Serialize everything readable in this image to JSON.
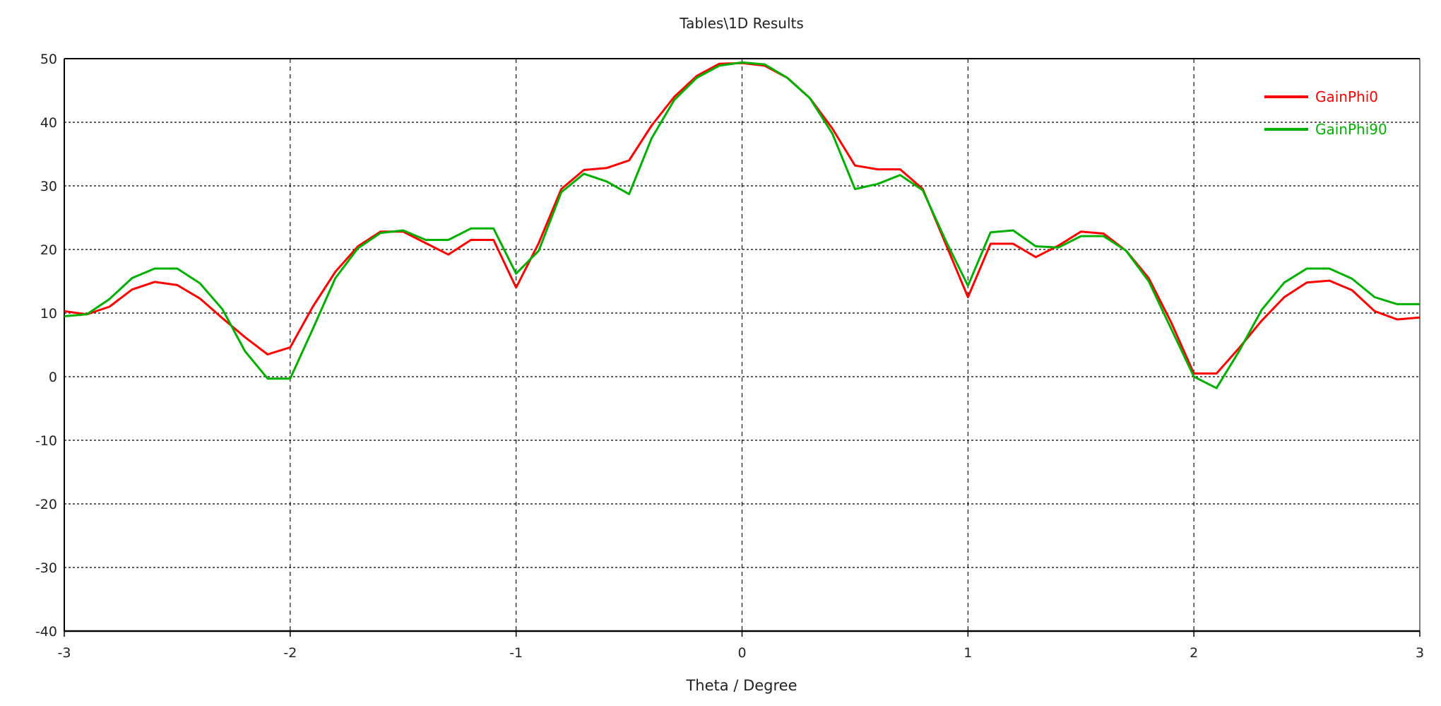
{
  "chart_data": {
    "type": "line",
    "title": "Tables\\1D Results",
    "xlabel": "Theta / Degree",
    "ylabel": "",
    "xlim": [
      -3,
      3
    ],
    "ylim": [
      -40,
      50
    ],
    "xticks": [
      -3,
      -2,
      -1,
      0,
      1,
      2,
      3
    ],
    "yticks": [
      -40,
      -30,
      -20,
      -10,
      0,
      10,
      20,
      30,
      40,
      50
    ],
    "grid": true,
    "legend_position": "top-right",
    "x": [
      -3,
      -2.9,
      -2.8,
      -2.7,
      -2.6,
      -2.5,
      -2.4,
      -2.3,
      -2.2,
      -2.1,
      -2,
      -1.9,
      -1.8,
      -1.7,
      -1.6,
      -1.5,
      -1.4,
      -1.3,
      -1.2,
      -1.1,
      -1,
      -0.9,
      -0.8,
      -0.7,
      -0.6,
      -0.5,
      -0.4,
      -0.3,
      -0.2,
      -0.1,
      0,
      0.1,
      0.2,
      0.3,
      0.4,
      0.5,
      0.6,
      0.7,
      0.8,
      0.9,
      1,
      1.1,
      1.2,
      1.3,
      1.4,
      1.5,
      1.6,
      1.7,
      1.8,
      1.9,
      2,
      2.1,
      2.2,
      2.3,
      2.4,
      2.5,
      2.6,
      2.7,
      2.8,
      2.9,
      3
    ],
    "series": [
      {
        "name": "GainPhi0",
        "color": "#ff0000",
        "values": [
          10.3,
          9.8,
          11,
          13.7,
          14.9,
          14.4,
          12.3,
          9.2,
          6.2,
          3.5,
          4.6,
          11,
          16.5,
          20.5,
          22.8,
          22.8,
          21,
          19.2,
          21.5,
          21.5,
          14,
          21,
          29.5,
          32.5,
          32.8,
          34,
          39.5,
          44,
          47.3,
          49.2,
          49.3,
          48.9,
          47,
          43.8,
          39,
          33.2,
          32.6,
          32.6,
          29.5,
          21,
          12.5,
          20.9,
          20.9,
          18.8,
          20.6,
          22.8,
          22.5,
          19.8,
          15.5,
          8.5,
          0.5,
          0.5,
          4.5,
          8.8,
          12.5,
          14.8,
          15.1,
          13.6,
          10.3,
          9,
          9.3
        ]
      },
      {
        "name": "GainPhi90",
        "color": "#00b000",
        "values": [
          9.5,
          9.8,
          12.2,
          15.5,
          17,
          17,
          14.7,
          10.6,
          4,
          -0.3,
          -0.3,
          7.5,
          15.5,
          20.2,
          22.6,
          23,
          21.5,
          21.5,
          23.3,
          23.3,
          16.2,
          19.8,
          29,
          31.9,
          30.7,
          28.7,
          37.5,
          43.5,
          47,
          48.9,
          49.4,
          49.1,
          47,
          43.8,
          38.2,
          29.5,
          30.3,
          31.7,
          29.3,
          21.5,
          14.3,
          22.7,
          23,
          20.5,
          20.3,
          22.1,
          22.1,
          19.8,
          15,
          7.5,
          0,
          -1.8,
          4,
          10.5,
          14.8,
          17,
          17,
          15.4,
          12.5,
          11.4,
          11.4
        ]
      }
    ]
  }
}
